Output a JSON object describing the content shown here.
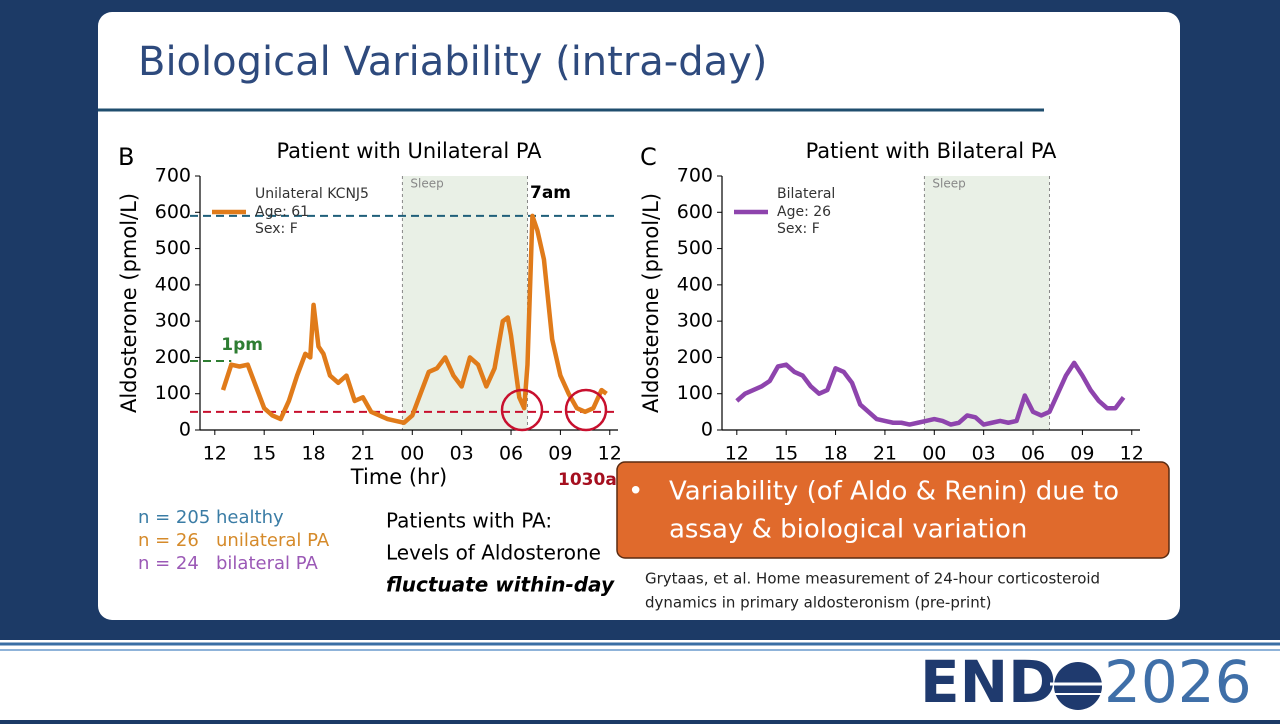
{
  "slide": {
    "title": "Biological Variability (intra-day)",
    "cohorts": [
      "n = 205 healthy",
      "n = 26   unilateral PA",
      "n = 24   bilateral PA"
    ],
    "summary": [
      "Patients with PA:",
      "Levels of Aldosterone"
    ],
    "summary_emphasis": "fluctuate within-day",
    "callout": [
      "Variability (of Aldo & Renin) due to",
      "assay & biological variation"
    ],
    "citation": [
      "Grytaas, et al. Home measurement of 24-hour corticosteroid",
      "dynamics in primary aldosteronism (pre-print)"
    ],
    "logo": [
      "END",
      "2026"
    ]
  },
  "chart_data": [
    {
      "type": "line",
      "panel": "B",
      "title": "Patient with Unilateral PA",
      "xlabel": "Time (hr)",
      "ylabel": "Aldosterone (pmol/L)",
      "xlim": [
        11.1,
        36.5
      ],
      "xticks": [
        {
          "value": 12,
          "label": "12"
        },
        15,
        18,
        21,
        {
          "value": 24,
          "label": "00"
        },
        {
          "value": 27,
          "label": "03"
        },
        {
          "value": 30,
          "label": "06"
        },
        {
          "value": 33,
          "label": "09"
        },
        {
          "value": 36,
          "label": "12"
        }
      ],
      "ylim": [
        0,
        700
      ],
      "yticks": [
        0,
        100,
        200,
        300,
        400,
        500,
        600,
        700
      ],
      "shaded_span": {
        "label": "Sleep",
        "x": [
          23.4,
          31
        ]
      },
      "series": [
        {
          "name": "Unilateral KCNJ5",
          "details": [
            "Age: 61",
            "Sex: F"
          ],
          "color": "#e07b1a",
          "x": [
            12.5,
            13,
            13.5,
            14,
            14.5,
            15,
            15.5,
            16,
            16.5,
            17,
            17.5,
            17.8,
            18,
            18.3,
            18.6,
            19,
            19.5,
            20,
            20.5,
            21,
            21.5,
            22,
            22.5,
            23,
            23.5,
            24,
            24.5,
            25,
            25.5,
            26,
            26.5,
            27,
            27.5,
            28,
            28.5,
            29,
            29.5,
            29.8,
            30,
            30.5,
            30.8,
            31,
            31.3,
            31.6,
            32,
            32.5,
            33,
            33.5,
            34,
            34.5,
            35,
            35.5,
            35.8
          ],
          "values": [
            110,
            180,
            175,
            180,
            120,
            60,
            40,
            30,
            80,
            150,
            210,
            200,
            345,
            230,
            210,
            150,
            130,
            150,
            80,
            90,
            50,
            40,
            30,
            25,
            20,
            40,
            100,
            160,
            170,
            200,
            150,
            120,
            200,
            180,
            120,
            170,
            300,
            310,
            260,
            90,
            60,
            180,
            590,
            550,
            470,
            250,
            150,
            100,
            60,
            50,
            60,
            110,
            100
          ]
        }
      ],
      "reference_lines": [
        {
          "value": 590,
          "color": "#1f5f7a"
        },
        {
          "value": 50,
          "color": "#c8102e"
        },
        {
          "value": 190,
          "x": 13,
          "label": "1pm",
          "color": "#2e7d32"
        }
      ],
      "annotations": [
        "7am",
        "1030a"
      ]
    },
    {
      "type": "line",
      "panel": "C",
      "title": "Patient with Bilateral PA",
      "ylabel": "Aldosterone (pmol/L)",
      "xlim": [
        11.1,
        36.5
      ],
      "xticks": [
        {
          "value": 12,
          "label": "12"
        },
        15,
        18,
        21,
        {
          "value": 24,
          "label": "00"
        },
        {
          "value": 27,
          "label": "03"
        },
        {
          "value": 30,
          "label": "06"
        },
        {
          "value": 33,
          "label": "09"
        },
        {
          "value": 36,
          "label": "12"
        }
      ],
      "ylim": [
        0,
        700
      ],
      "yticks": [
        0,
        100,
        200,
        300,
        400,
        500,
        600,
        700
      ],
      "shaded_span": {
        "label": "Sleep",
        "x": [
          23.4,
          31
        ]
      },
      "series": [
        {
          "name": "Bilateral",
          "details": [
            "Age: 26",
            "Sex: F"
          ],
          "color": "#8e44ad",
          "x": [
            12,
            12.5,
            13,
            13.5,
            14,
            14.5,
            15,
            15.5,
            16,
            16.5,
            17,
            17.5,
            18,
            18.5,
            19,
            19.5,
            20,
            20.5,
            21,
            21.5,
            22,
            22.5,
            23,
            23.5,
            24,
            24.5,
            25,
            25.5,
            26,
            26.5,
            27,
            27.5,
            28,
            28.5,
            29,
            29.5,
            30,
            30.5,
            31,
            31.5,
            32,
            32.5,
            33,
            33.5,
            34,
            34.5,
            35,
            35.5
          ],
          "values": [
            80,
            100,
            110,
            120,
            135,
            175,
            180,
            160,
            150,
            120,
            100,
            110,
            170,
            160,
            130,
            70,
            50,
            30,
            25,
            20,
            20,
            15,
            20,
            25,
            30,
            25,
            15,
            20,
            40,
            35,
            15,
            20,
            25,
            20,
            25,
            95,
            50,
            40,
            50,
            100,
            150,
            185,
            150,
            110,
            80,
            60,
            60,
            90
          ]
        }
      ]
    }
  ]
}
